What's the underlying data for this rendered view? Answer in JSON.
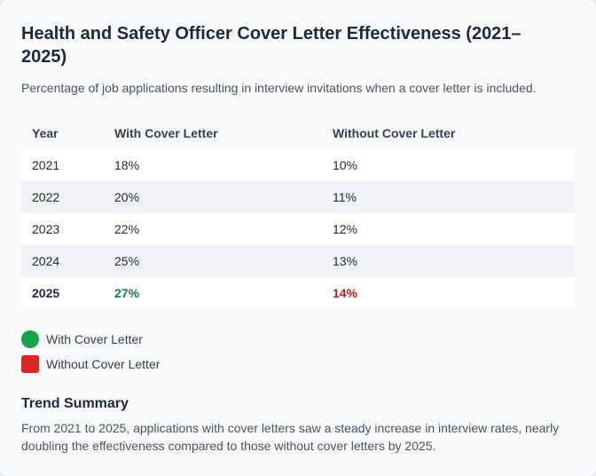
{
  "title": "Health and Safety Officer Cover Letter Effectiveness (2021–2025)",
  "subtitle": "Percentage of job applications resulting in interview invitations when a cover letter is included.",
  "table": {
    "headers": [
      "Year",
      "With Cover Letter",
      "Without Cover Letter"
    ],
    "rows": [
      [
        "2021",
        "18%",
        "10%"
      ],
      [
        "2022",
        "20%",
        "11%"
      ],
      [
        "2023",
        "22%",
        "12%"
      ],
      [
        "2024",
        "25%",
        "13%"
      ],
      [
        "2025",
        "27%",
        "14%"
      ]
    ]
  },
  "legend": [
    {
      "label": "With Cover Letter",
      "color": "#16a34a",
      "shape": "circle"
    },
    {
      "label": "Without Cover Letter",
      "color": "#dc2626",
      "shape": "square"
    }
  ],
  "summary": {
    "title": "Trend Summary",
    "text": "From 2021 to 2025, applications with cover letters saw a steady increase in interview rates, nearly doubling the effectiveness compared to those without cover letters by 2025."
  },
  "chart_data": {
    "type": "table",
    "title": "Health and Safety Officer Cover Letter Effectiveness (2021–2025)",
    "subtitle": "Percentage of job applications resulting in interview invitations when a cover letter is included.",
    "categories": [
      "2021",
      "2022",
      "2023",
      "2024",
      "2025"
    ],
    "series": [
      {
        "name": "With Cover Letter",
        "values": [
          18,
          20,
          22,
          25,
          27
        ],
        "unit": "%",
        "color": "#16a34a"
      },
      {
        "name": "Without Cover Letter",
        "values": [
          10,
          11,
          12,
          13,
          14
        ],
        "unit": "%",
        "color": "#dc2626"
      }
    ],
    "highlight_category": "2025"
  }
}
